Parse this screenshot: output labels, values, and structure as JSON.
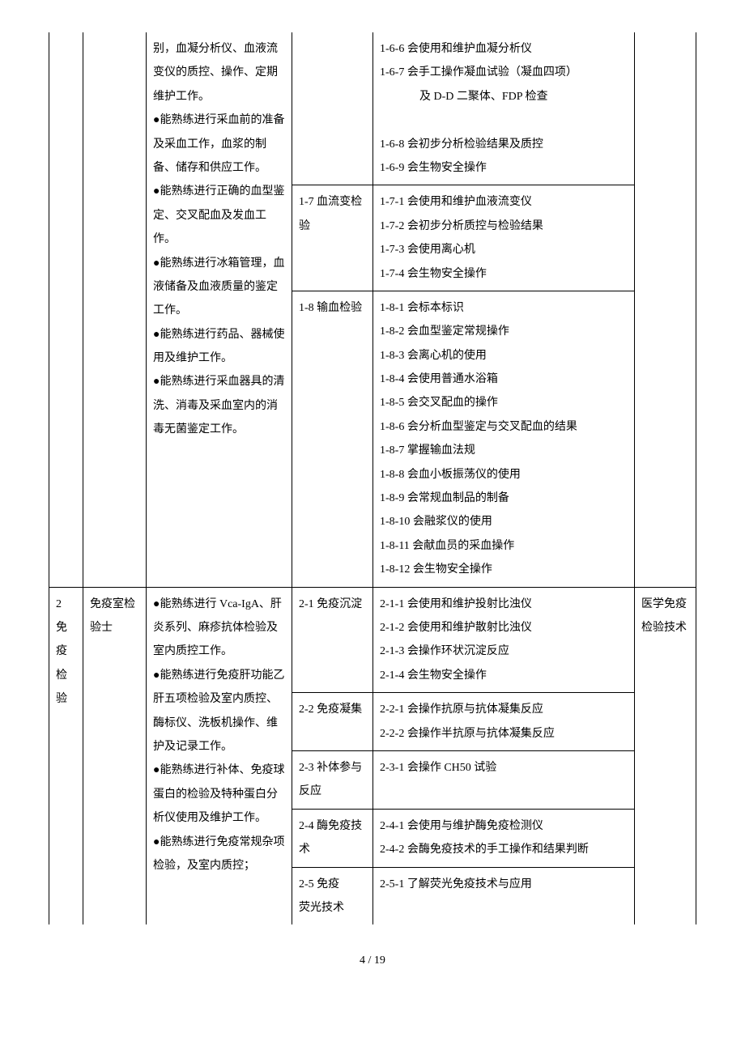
{
  "row1": {
    "col3": "别，血凝分析仪、血液流变仪的质控、操作、定期维护工作。\n●能熟练进行采血前的准备及采血工作，血浆的制备、储存和供应工作。\n●能熟练进行正确的血型鉴定、交叉配血及发血工作。\n●能熟练进行冰箱管理，血液储备及血液质量的鉴定工作。\n●能熟练进行药品、器械使用及维护工作。\n●能熟练进行采血器具的清洗、消毒及采血室内的消毒无菌鉴定工作。",
    "sub1": {
      "c4": "",
      "c5": "1-6-6 会使用和维护血凝分析仪\n1-6-7 会手工操作凝血试验（凝血四项）\n　　　及 D-D 二聚体、FDP 检查\n1-6-8 会初步分析检验结果及质控\n1-6-9 会生物安全操作"
    },
    "sub2": {
      "c4": "1-7 血流变检验",
      "c5": "1-7-1 会使用和维护血液流变仪\n1-7-2 会初步分析质控与检验结果\n1-7-3 会使用离心机\n1-7-4 会生物安全操作"
    },
    "sub3": {
      "c4": "1-8 输血检验",
      "c5": "1-8-1 会标本标识\n1-8-2 会血型鉴定常规操作\n1-8-3 会离心机的使用\n1-8-4 会使用普通水浴箱\n1-8-5 会交叉配血的操作\n1-8-6 会分析血型鉴定与交叉配血的结果\n1-8-7 掌握输血法规\n1-8-8 会血小板振荡仪的使用\n1-8-9 会常规血制品的制备\n1-8-10 会融浆仪的使用\n1-8-11 会献血员的采血操作\n1-8-12 会生物安全操作"
    }
  },
  "row2": {
    "c1": "2\n免\n疫\n检\n验",
    "c2": "免疫室检验士",
    "c3": "●能熟练进行 Vca-IgA、肝炎系列、麻疹抗体检验及室内质控工作。\n●能熟练进行免疫肝功能乙肝五项检验及室内质控、酶标仪、洗板机操作、维护及记录工作。\n●能熟练进行补体、免疫球蛋白的检验及特种蛋白分析仪使用及维护工作。\n●能熟练进行免疫常规杂项检验，及室内质控；",
    "c6": "医学免疫检验技术",
    "sub1": {
      "c4": "2-1 免疫沉淀",
      "c5": "2-1-1 会使用和维护投射比浊仪\n2-1-2 会使用和维护散射比浊仪\n2-1-3 会操作环状沉淀反应\n2-1-4 会生物安全操作"
    },
    "sub2": {
      "c4": "2-2 免疫凝集",
      "c5": "2-2-1 会操作抗原与抗体凝集反应\n2-2-2 会操作半抗原与抗体凝集反应"
    },
    "sub3": {
      "c4": "2-3 补体参与反应",
      "c5": "2-3-1 会操作 CH50 试验"
    },
    "sub4": {
      "c4": "2-4 酶免疫技术",
      "c5": "2-4-1 会使用与维护酶免疫检测仪\n2-4-2 会酶免疫技术的手工操作和结果判断"
    },
    "sub5": {
      "c4": "2-5 免疫\n荧光技术",
      "c5": "2-5-1 了解荧光免疫技术与应用"
    }
  },
  "footer": "4 / 19"
}
